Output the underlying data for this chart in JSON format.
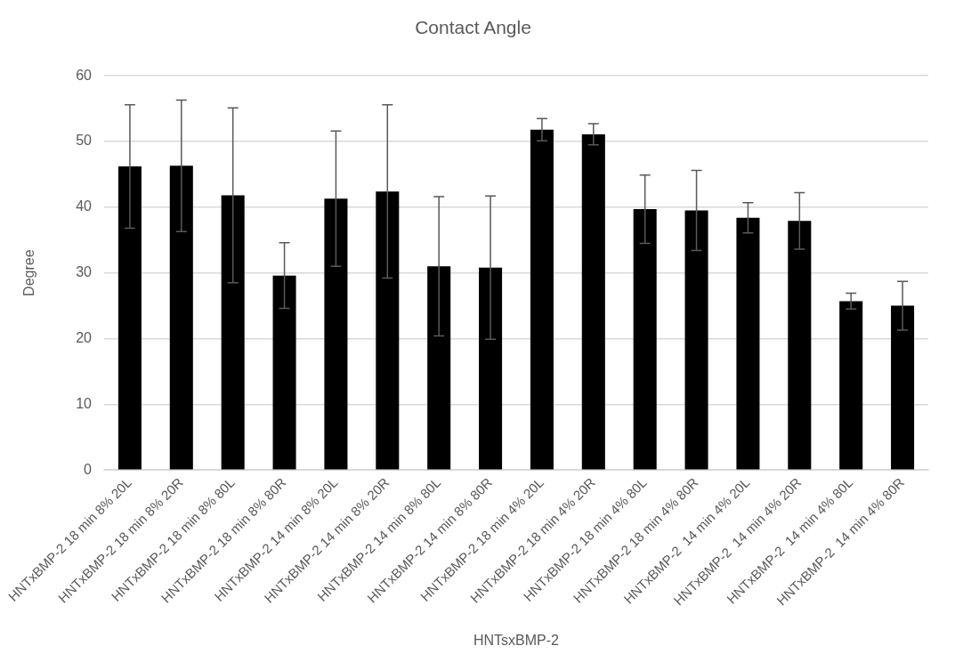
{
  "chart_data": {
    "type": "bar",
    "title": "Contact Angle",
    "xlabel": "HNTsxBMP-2",
    "ylabel": "Degree",
    "categories": [
      "HNTxBMP-2 18 min 8% 20L",
      "HNTxBMP-2 18 min 8% 20R",
      "HNTxBMP-2 18 min 8% 80L",
      "HNTxBMP-2 18 min 8% 80R",
      "HNTxBMP-2 14 min 8% 20L",
      "HNTxBMP-2 14 min 8% 20R",
      "HNTxBMP-2 14 min 8% 80L",
      "HNTxBMP-2 14 min 8% 80R",
      "HNTxBMP-2 18 min 4% 20L",
      "HNTxBMP-2 18 min 4% 20R",
      "HNTxBMP-2 18 min 4% 80L",
      "HNTxBMP-2 18 min 4% 80R",
      "HNTxBMP-2  14 min 4% 20L",
      "HNTxBMP-2  14 min 4% 20R",
      "HNTxBMP-2  14 min 4% 80L",
      "HNTxBMP-2  14 min 4% 80R"
    ],
    "values": [
      46.2,
      46.3,
      41.8,
      29.6,
      41.3,
      42.4,
      31.0,
      30.8,
      51.8,
      51.1,
      39.7,
      39.5,
      38.4,
      37.9,
      25.7,
      25.0
    ],
    "errors": [
      9.4,
      10.0,
      13.3,
      5.0,
      10.3,
      13.2,
      10.6,
      10.9,
      1.7,
      1.6,
      5.2,
      6.1,
      2.3,
      4.3,
      1.2,
      3.7
    ],
    "color": "#000000",
    "ylim": [
      0,
      60
    ],
    "yticks": [
      0,
      10,
      20,
      30,
      40,
      50,
      60
    ],
    "grid": "y",
    "legend": false
  }
}
